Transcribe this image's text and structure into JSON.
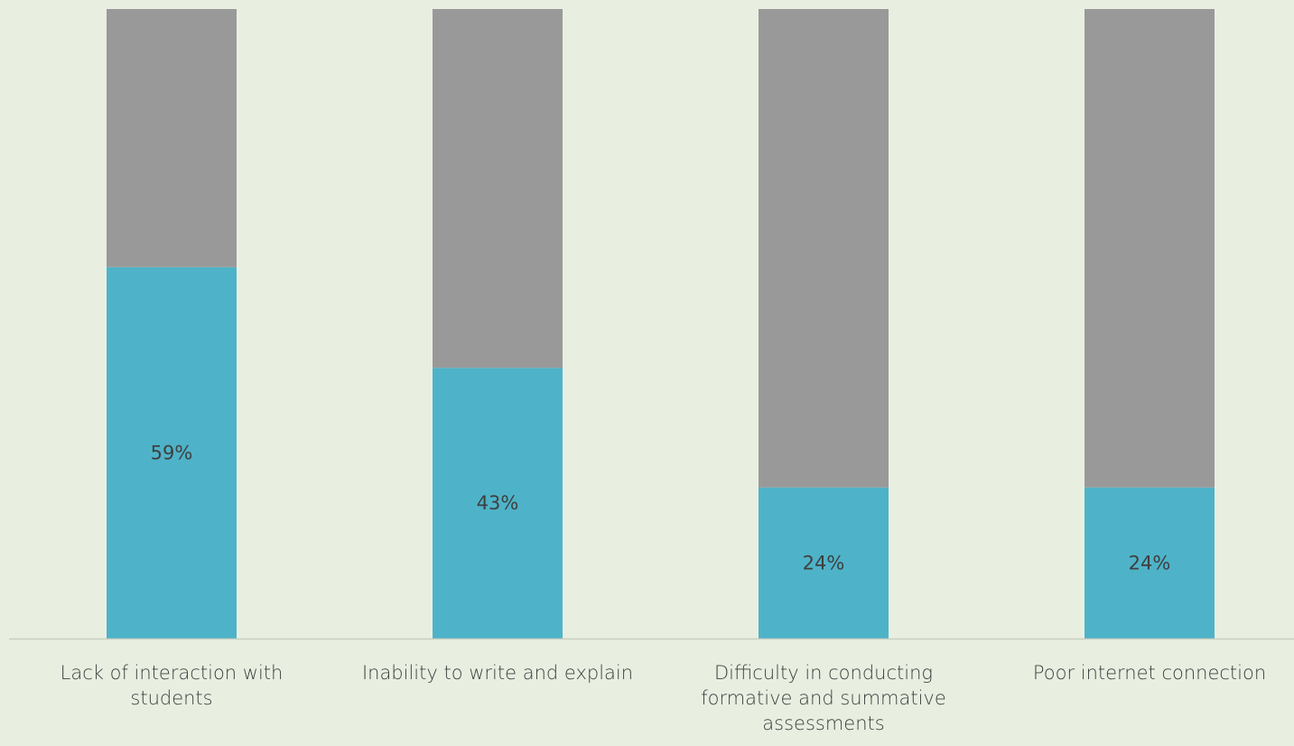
{
  "chart_data": {
    "type": "bar",
    "stacked": true,
    "categories": [
      "Lack of interaction with students",
      "Inability to write and explain",
      "Difficulty in conducting formative and summative assessments",
      "Poor internet connection"
    ],
    "series": [
      {
        "values": [
          59,
          43,
          24,
          24
        ],
        "color": "#4eb3c8",
        "data_labels": [
          "59%",
          "43%",
          "24%",
          "24%"
        ]
      },
      {
        "values": [
          41,
          57,
          76,
          76
        ],
        "color": "#999999"
      }
    ],
    "ylim": [
      0,
      100
    ],
    "grid": false,
    "legend": "none"
  }
}
